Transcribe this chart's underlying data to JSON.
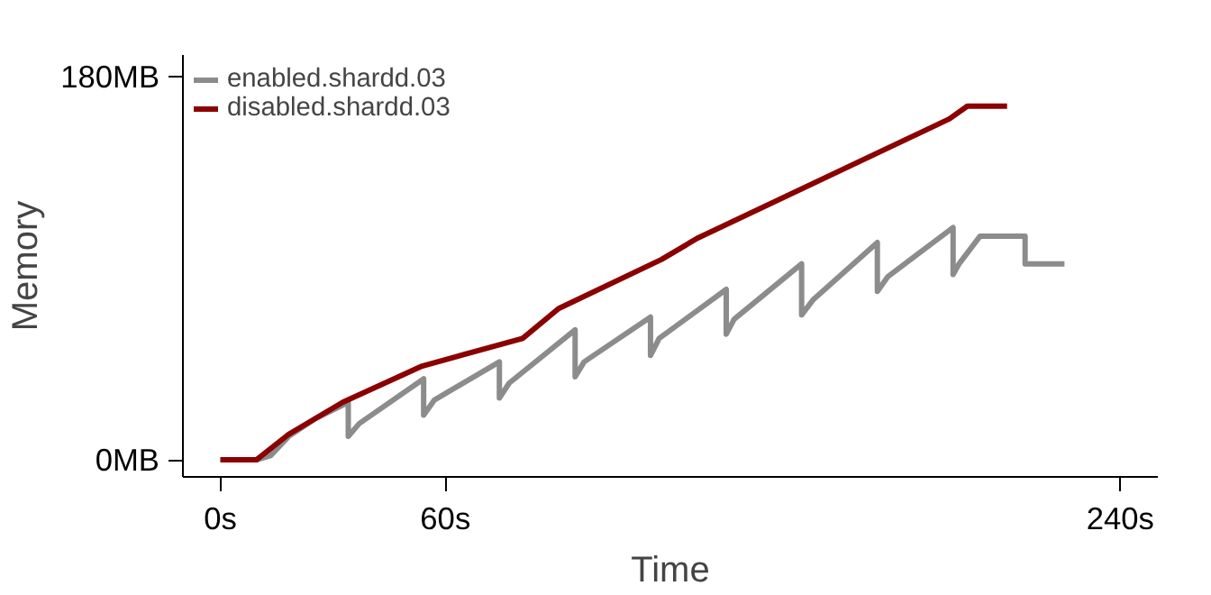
{
  "chart_data": {
    "type": "line",
    "xlabel": "Time",
    "ylabel": "Memory",
    "xlim": [
      -10,
      250
    ],
    "ylim": [
      -8,
      190
    ],
    "xticks": [
      {
        "value": 0,
        "label": "0s"
      },
      {
        "value": 60,
        "label": "60s"
      },
      {
        "value": 240,
        "label": "240s"
      }
    ],
    "yticks": [
      {
        "value": 0,
        "label": "0MB"
      },
      {
        "value": 180,
        "label": "180MB"
      }
    ],
    "grid": false,
    "legend": "top left",
    "line_style": "solid",
    "marker": "none",
    "series": [
      {
        "name": "enabled.shardd.03",
        "color": "#8c8c8c",
        "x": [
          0,
          9.6,
          13.4,
          18.2,
          25,
          34.1,
          34.1,
          37,
          54.2,
          54.2,
          57,
          74.4,
          74.4,
          77,
          94.6,
          94.6,
          97,
          114.7,
          114.7,
          117,
          134.9,
          134.9,
          137,
          155,
          155,
          158,
          175.2,
          175.2,
          178,
          195.4,
          195.4,
          197,
          202.6,
          214.6,
          214.6,
          225.1
        ],
        "values": [
          0,
          0,
          2,
          11,
          19,
          27,
          11,
          17,
          38,
          21,
          28,
          46,
          29,
          36,
          61,
          39,
          46,
          67,
          49,
          57,
          80,
          59,
          66,
          92,
          68,
          75,
          102,
          79,
          86,
          109,
          87,
          92,
          105,
          105,
          92,
          92
        ]
      },
      {
        "name": "disabled.shardd.03",
        "color": "#8b0000",
        "x": [
          0,
          9.6,
          18.2,
          32.6,
          53.8,
          80.6,
          90.2,
          117.6,
          127.2,
          194.4,
          199.2,
          209.8
        ],
        "values": [
          0,
          0,
          12,
          27,
          44,
          57,
          71,
          94,
          104,
          160,
          166,
          166
        ]
      }
    ]
  }
}
